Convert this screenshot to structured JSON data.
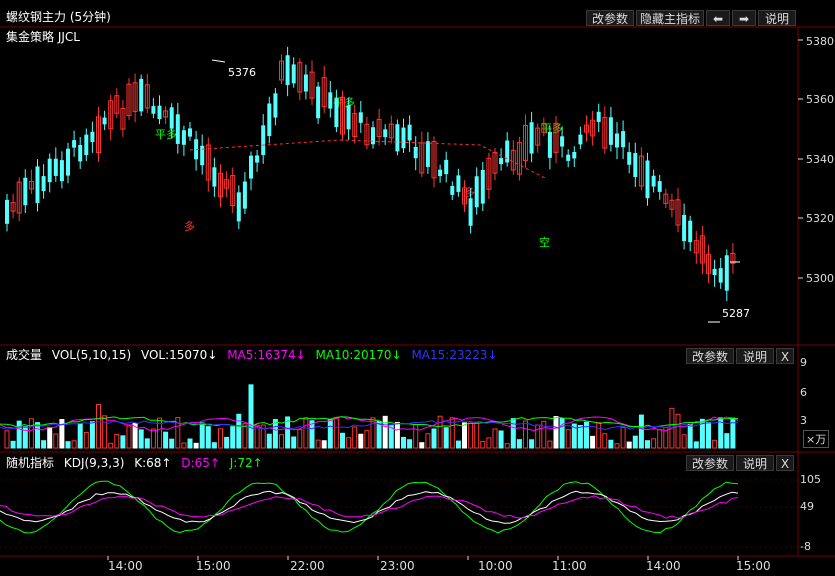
{
  "main_panel": {
    "title": "螺纹钢主力 (5分钟)",
    "strategy": "集金策略 JJCL",
    "buttons": {
      "params": "改参数",
      "hide": "隐藏主指标",
      "left": "⬅",
      "right": "➡",
      "help": "说明"
    },
    "y_ticks": [
      "5380",
      "5360",
      "5340",
      "5320",
      "5300"
    ],
    "annotations": {
      "high": "5376",
      "low": "5287",
      "flat1": "平多",
      "flat2": "平多",
      "flat3": "平多",
      "long1": "多",
      "long2": "多",
      "short1": "空"
    }
  },
  "volume_panel": {
    "title": "成交量",
    "ind": "VOL(5,10,15)",
    "vol": "VOL:15070↓",
    "ma5": "MA5:16374↓",
    "ma10": "MA10:20170↓",
    "ma15": "MA15:23223↓",
    "buttons": {
      "params": "改参数",
      "help": "说明",
      "close": "X"
    },
    "y_ticks": [
      "9",
      "6",
      "3"
    ],
    "unit": "×万"
  },
  "kdj_panel": {
    "title": "随机指标",
    "ind": "KDJ(9,3,3)",
    "k": "K:68↑",
    "d": "D:65↑",
    "j": "J:72↑",
    "buttons": {
      "params": "改参数",
      "help": "说明",
      "close": "X"
    },
    "y_ticks": [
      "105",
      "49",
      "-8"
    ]
  },
  "x_ticks": [
    "14:00",
    "15:00",
    "22:00",
    "23:00",
    "10:00",
    "11:00",
    "14:00",
    "15:00"
  ],
  "colors": {
    "up": "#ff3232",
    "down": "#54ffff",
    "ma5": "#ff00ff",
    "ma10": "#00ff00",
    "ma15": "#3232ff",
    "grid": "#7a0000"
  }
}
